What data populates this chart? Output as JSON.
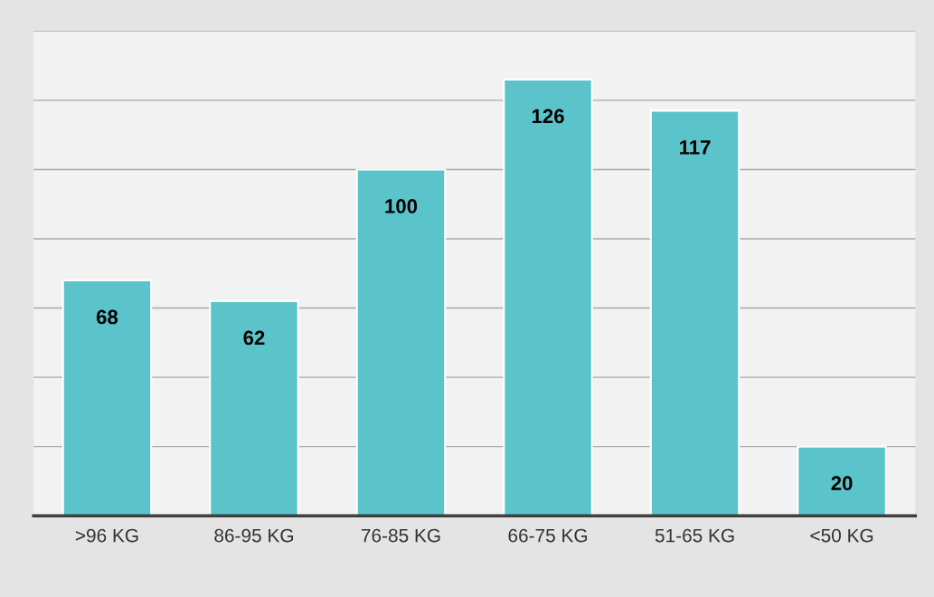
{
  "chart_data": {
    "type": "bar",
    "categories": [
      ">96 KG",
      "86-95 KG",
      "76-85 KG",
      "66-75 KG",
      "51-65 KG",
      "<50 KG"
    ],
    "values": [
      68,
      62,
      100,
      126,
      117,
      20
    ],
    "color": "#5bc4cb",
    "ylim": [
      0,
      140
    ],
    "yticks": [
      {
        "value": 0,
        "label": null
      },
      {
        "value": 20,
        "label": null
      },
      {
        "value": 40,
        "label": null
      },
      {
        "value": 60,
        "label": null
      },
      {
        "value": 80,
        "label": null
      },
      {
        "value": 100,
        "label": null
      },
      {
        "value": 120,
        "label": null
      },
      {
        "value": 140,
        "label": null
      }
    ],
    "tick_labels": "x",
    "grid": "y",
    "data_labels": true
  }
}
